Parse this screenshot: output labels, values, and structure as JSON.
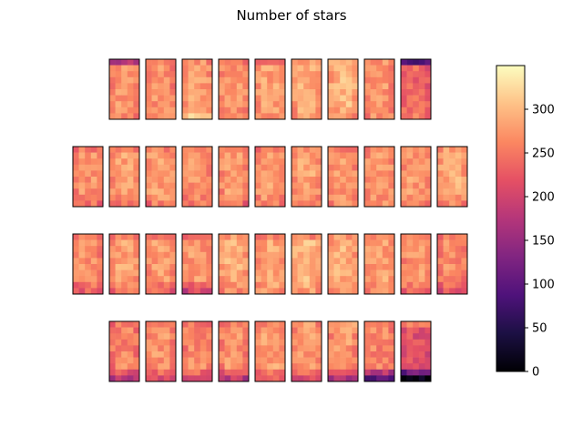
{
  "chart_data": {
    "type": "heatmap",
    "title": "Number of stars",
    "colormap": "magma",
    "colorbar": {
      "vmin": 0,
      "vmax": 350,
      "ticks": [
        0,
        50,
        100,
        150,
        200,
        250,
        300
      ]
    },
    "layout": {
      "rows": 4,
      "panels_per_row": [
        9,
        11,
        11,
        9
      ],
      "cells_per_panel": {
        "columns": 5,
        "rows": 10
      }
    },
    "panel_levels": [
      [
        {
          "top": 160,
          "body": 265,
          "bottom": 260
        },
        {
          "top": 255,
          "body": 265,
          "bottom": 265
        },
        {
          "top": 265,
          "body": 275,
          "bottom": 300
        },
        {
          "top": 255,
          "body": 270,
          "bottom": 260
        },
        {
          "top": 235,
          "body": 275,
          "bottom": 265
        },
        {
          "top": 270,
          "body": 285,
          "bottom": 270
        },
        {
          "top": 285,
          "body": 290,
          "bottom": 265
        },
        {
          "top": 270,
          "body": 270,
          "bottom": 265
        },
        {
          "top": 90,
          "body": 230,
          "bottom": 250
        }
      ],
      [
        {
          "top": 250,
          "body": 265,
          "bottom": 245
        },
        {
          "top": 265,
          "body": 275,
          "bottom": 240
        },
        {
          "top": 255,
          "body": 275,
          "bottom": 250
        },
        {
          "top": 255,
          "body": 265,
          "bottom": 245
        },
        {
          "top": 260,
          "body": 270,
          "bottom": 240
        },
        {
          "top": 260,
          "body": 275,
          "bottom": 260
        },
        {
          "top": 265,
          "body": 280,
          "bottom": 260
        },
        {
          "top": 255,
          "body": 270,
          "bottom": 260
        },
        {
          "top": 260,
          "body": 275,
          "bottom": 260
        },
        {
          "top": 255,
          "body": 270,
          "bottom": 265
        },
        {
          "top": 270,
          "body": 285,
          "bottom": 255
        }
      ],
      [
        {
          "top": 250,
          "body": 265,
          "bottom": 225
        },
        {
          "top": 265,
          "body": 275,
          "bottom": 245
        },
        {
          "top": 250,
          "body": 270,
          "bottom": 230
        },
        {
          "top": 255,
          "body": 270,
          "bottom": 200
        },
        {
          "top": 270,
          "body": 285,
          "bottom": 260
        },
        {
          "top": 260,
          "body": 280,
          "bottom": 270
        },
        {
          "top": 255,
          "body": 290,
          "bottom": 270
        },
        {
          "top": 270,
          "body": 285,
          "bottom": 260
        },
        {
          "top": 255,
          "body": 275,
          "bottom": 255
        },
        {
          "top": 255,
          "body": 270,
          "bottom": 240
        },
        {
          "top": 250,
          "body": 260,
          "bottom": 215
        }
      ],
      [
        {
          "top": 245,
          "body": 255,
          "bottom": 170
        },
        {
          "top": 250,
          "body": 265,
          "bottom": 205
        },
        {
          "top": 245,
          "body": 260,
          "bottom": 200
        },
        {
          "top": 250,
          "body": 265,
          "bottom": 180
        },
        {
          "top": 260,
          "body": 275,
          "bottom": 215
        },
        {
          "top": 270,
          "body": 270,
          "bottom": 200
        },
        {
          "top": 285,
          "body": 270,
          "bottom": 165
        },
        {
          "top": 265,
          "body": 255,
          "bottom": 95
        },
        {
          "top": 260,
          "body": 210,
          "bottom": 20
        }
      ]
    ]
  }
}
